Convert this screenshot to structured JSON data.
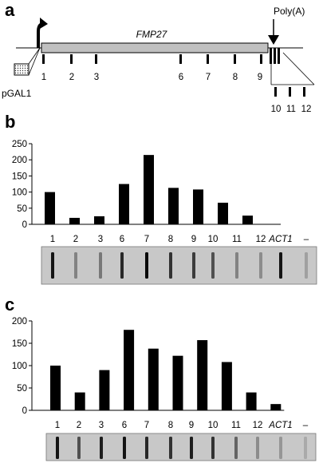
{
  "panel_a": {
    "letter": "a",
    "gene_label": "FMP27",
    "polya_label": "Poly(A)",
    "promoter_label": "pGAL1",
    "probes_main": [
      "1",
      "2",
      "3",
      "6",
      "7",
      "8",
      "9"
    ],
    "probes_tail": [
      "10",
      "11",
      "12"
    ]
  },
  "panel_b": {
    "letter": "b"
  },
  "panel_c": {
    "letter": "c"
  },
  "blot_labels": [
    "1",
    "2",
    "3",
    "6",
    "7",
    "8",
    "9",
    "10",
    "11",
    "12",
    "ACT1",
    "–"
  ],
  "colors": {
    "bar": "#000000",
    "blot_bg": "#c8c8c8",
    "gene_box": "#c0c0c0"
  },
  "chart_data": [
    {
      "type": "bar",
      "title": "",
      "xlabel": "",
      "ylabel": "",
      "categories": [
        "1",
        "2",
        "3",
        "6",
        "7",
        "8",
        "9",
        "10",
        "11",
        "12"
      ],
      "values": [
        100,
        20,
        25,
        125,
        215,
        113,
        108,
        67,
        27,
        0
      ],
      "ylim": [
        0,
        250
      ],
      "yticks": [
        0,
        50,
        100,
        150,
        200,
        250
      ],
      "grid": false
    },
    {
      "type": "bar",
      "title": "",
      "xlabel": "",
      "ylabel": "",
      "categories": [
        "1",
        "2",
        "3",
        "6",
        "7",
        "8",
        "9",
        "10",
        "11",
        "12"
      ],
      "values": [
        100,
        40,
        90,
        180,
        138,
        122,
        157,
        108,
        40,
        14
      ],
      "ylim": [
        0,
        200
      ],
      "yticks": [
        0,
        50,
        100,
        150,
        200
      ],
      "grid": false
    }
  ]
}
